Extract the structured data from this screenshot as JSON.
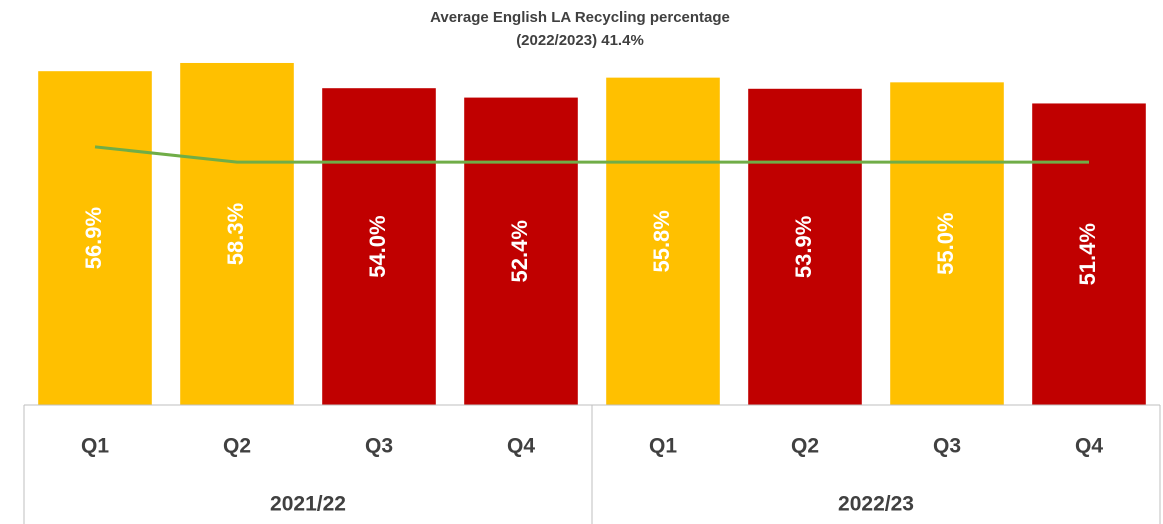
{
  "chart_data": {
    "type": "bar",
    "title": "Average English LA Recycling percentage",
    "subtitle": "(2022/2023) 41.4%",
    "categories": [
      "Q1",
      "Q2",
      "Q3",
      "Q4",
      "Q1",
      "Q2",
      "Q3",
      "Q4"
    ],
    "category_groups": [
      "2021/22",
      "2022/23"
    ],
    "ylim": [
      0,
      60
    ],
    "series": [
      {
        "type": "bar",
        "values": [
          56.9,
          58.3,
          54.0,
          52.4,
          55.8,
          53.9,
          55.0,
          51.4
        ],
        "value_labels": [
          "56.9%",
          "58.3%",
          "54.0%",
          "52.4%",
          "55.8%",
          "53.9%",
          "55.0%",
          "51.4%"
        ],
        "colors": [
          "#ffc000",
          "#ffc000",
          "#c00000",
          "#c00000",
          "#ffc000",
          "#c00000",
          "#ffc000",
          "#c00000"
        ]
      },
      {
        "type": "line",
        "color": "#70ad47",
        "values": [
          44.0,
          41.4,
          41.4,
          41.4,
          41.4,
          41.4,
          41.4,
          41.4
        ]
      }
    ]
  }
}
